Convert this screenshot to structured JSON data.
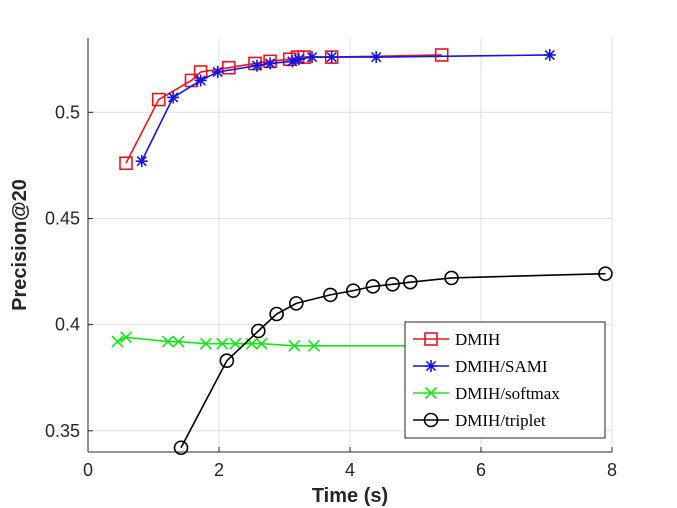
{
  "chart_data": {
    "type": "line",
    "title": "",
    "xlabel": "Time (s)",
    "ylabel": "Precision@20",
    "xlim": [
      0,
      8
    ],
    "ylim": [
      0.34,
      0.535
    ],
    "xticks": [
      0,
      2,
      4,
      6,
      8
    ],
    "xtick_labels": [
      "0",
      "2",
      "4",
      "6",
      "8"
    ],
    "yticks": [
      0.35,
      0.4,
      0.45,
      0.5
    ],
    "ytick_labels": [
      "0.35",
      "0.4",
      "0.45",
      "0.5"
    ],
    "grid": true,
    "legend_position": "bottom-right",
    "series": [
      {
        "name": "DMIH",
        "color": "#e8141c",
        "marker": "square",
        "x": [
          0.58,
          1.08,
          1.58,
          1.72,
          2.15,
          2.55,
          2.78,
          3.08,
          3.2,
          3.3,
          3.72,
          5.4
        ],
        "y": [
          0.476,
          0.506,
          0.515,
          0.519,
          0.521,
          0.523,
          0.524,
          0.525,
          0.526,
          0.526,
          0.526,
          0.527
        ]
      },
      {
        "name": "DMIH/SAMI",
        "color": "#1414e8",
        "marker": "asterisk",
        "x": [
          0.82,
          1.3,
          1.72,
          1.98,
          2.58,
          2.78,
          3.12,
          3.22,
          3.42,
          3.72,
          4.4,
          7.05
        ],
        "y": [
          0.477,
          0.507,
          0.515,
          0.519,
          0.522,
          0.523,
          0.524,
          0.525,
          0.526,
          0.526,
          0.526,
          0.527
        ]
      },
      {
        "name": "DMIH/softmax",
        "color": "#14e814",
        "marker": "x",
        "x": [
          0.45,
          0.58,
          1.22,
          1.38,
          1.8,
          2.05,
          2.25,
          2.5,
          2.65,
          3.15,
          3.45,
          5.0
        ],
        "y": [
          0.392,
          0.394,
          0.392,
          0.392,
          0.391,
          0.391,
          0.391,
          0.391,
          0.391,
          0.39,
          0.39,
          0.39
        ]
      },
      {
        "name": "DMIH/triplet",
        "color": "#000000",
        "marker": "circle",
        "x": [
          1.42,
          2.12,
          2.6,
          2.88,
          3.18,
          3.7,
          4.05,
          4.35,
          4.65,
          4.92,
          5.55,
          7.9
        ],
        "y": [
          0.342,
          0.383,
          0.397,
          0.405,
          0.41,
          0.414,
          0.416,
          0.418,
          0.419,
          0.42,
          0.422,
          0.424
        ]
      }
    ]
  }
}
